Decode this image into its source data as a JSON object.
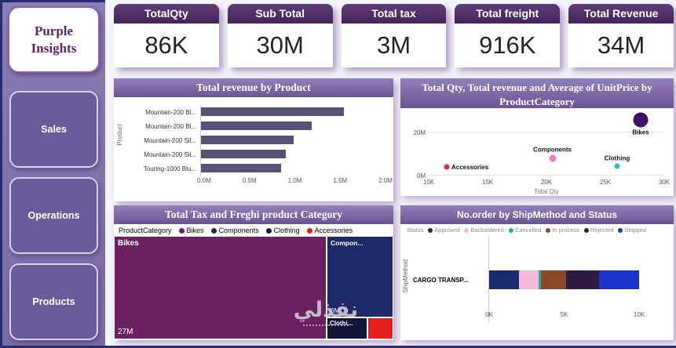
{
  "sidebar": {
    "logo": "Purple Insights",
    "items": [
      {
        "label": "Sales"
      },
      {
        "label": "Operations"
      },
      {
        "label": "Products"
      }
    ]
  },
  "kpis": [
    {
      "label": "TotalQty",
      "value": "86K"
    },
    {
      "label": "Sub Total",
      "value": "30M"
    },
    {
      "label": "Total tax",
      "value": "3M"
    },
    {
      "label": "Total freight",
      "value": "916K"
    },
    {
      "label": "Total Revenue",
      "value": "34M"
    }
  ],
  "watermark": {
    "text": "نفذلي"
  },
  "chart_data": [
    {
      "type": "bar",
      "orientation": "horizontal",
      "title": "Total revenue by Product",
      "ylabel": "Product",
      "categories": [
        "Mountain-200 Bl...",
        "Mountain-200 Bl...",
        "Mountain-200 Sil...",
        "Mountain-200 Sil...",
        "Touring-1000 Blu..."
      ],
      "values": [
        1.55,
        1.2,
        1.0,
        0.92,
        0.87
      ],
      "value_unit": "M",
      "xlim": [
        0,
        2
      ],
      "x_ticks": [
        "0.0M",
        "0.5M",
        "1.0M",
        "1.5M",
        "2.0M"
      ],
      "bar_color": "#5a5177"
    },
    {
      "type": "scatter",
      "title": "Total Qty, Total revenue and Average of UnitPrice by ProductCategory",
      "xlabel": "Total Qty",
      "xlim": [
        10000,
        30000
      ],
      "ylim": [
        0,
        30000000
      ],
      "x_ticks": [
        "10K",
        "15K",
        "20K",
        "25K",
        "30K"
      ],
      "y_ticks": [
        {
          "label": "20M",
          "frac": 0.667
        },
        {
          "label": "0M",
          "frac": 0
        }
      ],
      "points": [
        {
          "name": "Bikes",
          "x": 28000,
          "y": 26000000,
          "size": 19,
          "color": "#3d1163",
          "label_pos": "below"
        },
        {
          "name": "Components",
          "x": 20500,
          "y": 8000000,
          "size": 9,
          "color": "#e87fc4",
          "label_pos": "above"
        },
        {
          "name": "Clothing",
          "x": 26000,
          "y": 4500000,
          "size": 7,
          "color": "#2bc4c4",
          "label_pos": "above"
        },
        {
          "name": "Accessories",
          "x": 11500,
          "y": 4000000,
          "size": 7,
          "color": "#e03030",
          "label_pos": "right"
        }
      ]
    },
    {
      "type": "treemap",
      "title": "Total Tax and Freghi product Category",
      "legend_title": "ProductCategory",
      "legend": [
        "Bikes",
        "Components",
        "Clothing",
        "Accessories"
      ],
      "nodes": [
        {
          "name": "Bikes",
          "value": "27M",
          "color": "#6b2161"
        },
        {
          "name": "Compon...",
          "value": "6M",
          "color": "#1c2a68"
        },
        {
          "name": "Clothi...",
          "value": "",
          "color": "#12143a"
        },
        {
          "name": "Accessories",
          "value": "",
          "color": "#e01f1f"
        }
      ]
    },
    {
      "type": "bar",
      "stacked": true,
      "title": "No.order by ShipMethod and Status",
      "legend_title": "Status",
      "ylabel": "ShipMethod",
      "categories": [
        "CARGO TRANSP..."
      ],
      "xlim_k": 10,
      "x_ticks": [
        "0K",
        "5K",
        "10K"
      ],
      "series": [
        {
          "name": "Approved",
          "value": 2.0,
          "color": "#1b2a6b"
        },
        {
          "name": "Backordered",
          "value": 1.3,
          "color": "#f3b9d9"
        },
        {
          "name": "Cancelled",
          "value": 0.15,
          "color": "#2aa9a9"
        },
        {
          "name": "In process",
          "value": 1.7,
          "color": "#8a4a26"
        },
        {
          "name": "Rejected",
          "value": 2.2,
          "color": "#2e1a47"
        },
        {
          "name": "Shipped",
          "value": 2.65,
          "color": "#1a35c8"
        }
      ]
    }
  ]
}
